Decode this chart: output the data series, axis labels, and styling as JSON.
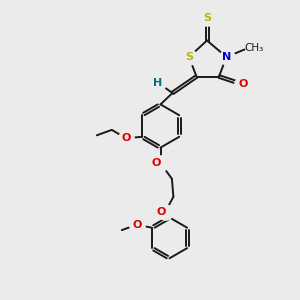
{
  "background_color": "#ebebeb",
  "bond_color": "#1a1a1a",
  "S_color": "#b8b800",
  "N_color": "#0000cc",
  "O_color": "#dd0000",
  "H_color": "#007070",
  "figsize": [
    3.0,
    3.0
  ],
  "dpi": 100,
  "xlim": [
    0,
    10
  ],
  "ylim": [
    0,
    10
  ]
}
